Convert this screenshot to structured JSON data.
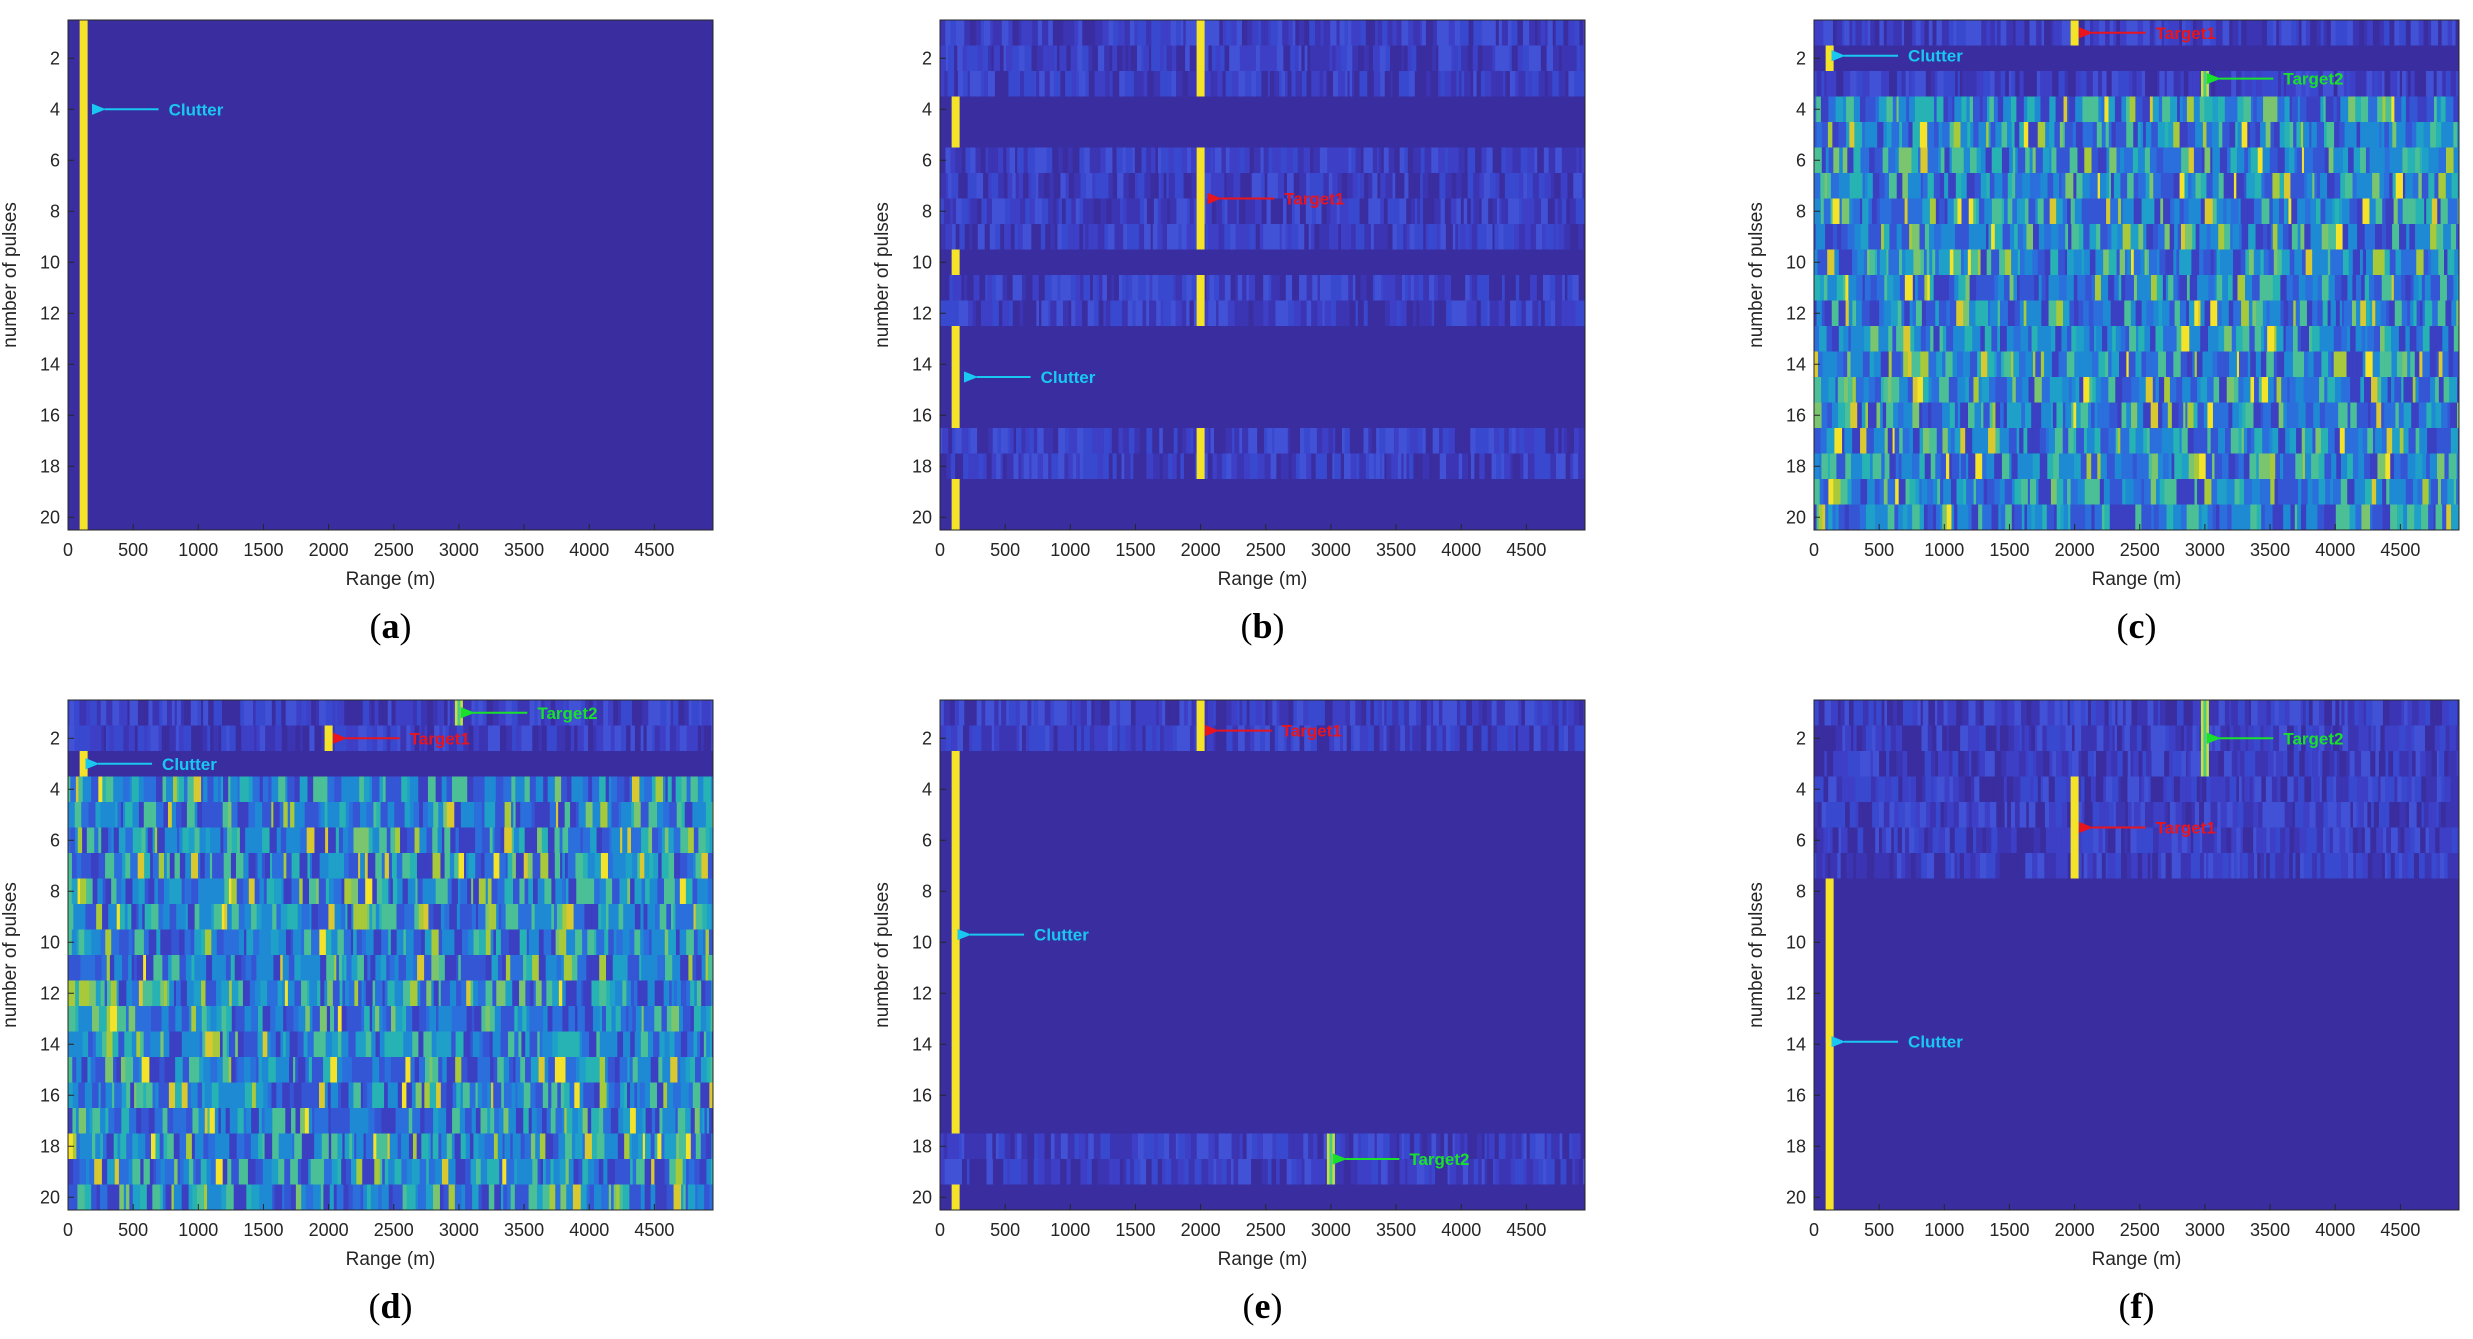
{
  "figure": {
    "colors": {
      "background": "#3a2da0",
      "clutter": "#f5e32a",
      "target": "#f5e32a",
      "clutter_annot": "#19c8f0",
      "target1_annot": "#e8141e",
      "target2_annot": "#19e02c",
      "speckle_low": "#3b3fc2",
      "speckle_mid": "#1fa0c8",
      "speckle_high": "#a8c93a"
    }
  },
  "chart_data": [
    {
      "type": "heatmap",
      "panel": "(a)",
      "panel_letter": "a",
      "xlabel": "Range (m)",
      "ylabel": "number of pulses",
      "xlim": [
        0,
        4950
      ],
      "ylim": [
        0.5,
        20.5
      ],
      "xticks": [
        0,
        500,
        1000,
        1500,
        2000,
        2500,
        3000,
        3500,
        4000,
        4500
      ],
      "yticks": [
        2,
        4,
        6,
        8,
        10,
        12,
        14,
        16,
        18,
        20
      ],
      "noise_rows": [],
      "speckle_rows": [],
      "lines": [
        {
          "kind": "clutter",
          "range": 120,
          "from": 0.5,
          "to": 20.5
        }
      ],
      "annotations": [
        {
          "text": "Clutter",
          "kind": "clutter",
          "point_range": 250,
          "point_pulse": 4
        }
      ]
    },
    {
      "type": "heatmap",
      "panel": "(b)",
      "panel_letter": "b",
      "xlabel": "Range (m)",
      "ylabel": "number of pulses",
      "xlim": [
        0,
        4950
      ],
      "ylim": [
        0.5,
        20.5
      ],
      "xticks": [
        0,
        500,
        1000,
        1500,
        2000,
        2500,
        3000,
        3500,
        4000,
        4500
      ],
      "yticks": [
        2,
        4,
        6,
        8,
        10,
        12,
        14,
        16,
        18,
        20
      ],
      "noise_rows": [
        1,
        2,
        3,
        6,
        7,
        8,
        9,
        11,
        12,
        17,
        18
      ],
      "speckle_rows": [],
      "lines": [
        {
          "kind": "target",
          "range": 2000,
          "from": 0.5,
          "to": 3.5
        },
        {
          "kind": "target",
          "range": 2000,
          "from": 5.5,
          "to": 9.5
        },
        {
          "kind": "target",
          "range": 2000,
          "from": 10.5,
          "to": 12.5
        },
        {
          "kind": "target",
          "range": 2000,
          "from": 16.5,
          "to": 18.5
        },
        {
          "kind": "clutter",
          "range": 120,
          "from": 3.5,
          "to": 5.5
        },
        {
          "kind": "clutter",
          "range": 120,
          "from": 9.5,
          "to": 10.5
        },
        {
          "kind": "clutter",
          "range": 120,
          "from": 12.5,
          "to": 16.5
        },
        {
          "kind": "clutter",
          "range": 120,
          "from": 18.5,
          "to": 20.5
        }
      ],
      "annotations": [
        {
          "text": "Target1",
          "kind": "target1",
          "point_range": 2120,
          "point_pulse": 7.5
        },
        {
          "text": "Clutter",
          "kind": "clutter",
          "point_range": 250,
          "point_pulse": 14.5
        }
      ]
    },
    {
      "type": "heatmap",
      "panel": "(c)",
      "panel_letter": "c",
      "xlabel": "Range (m)",
      "ylabel": "number of pulses",
      "xlim": [
        0,
        4950
      ],
      "ylim": [
        0.5,
        20.5
      ],
      "xticks": [
        0,
        500,
        1000,
        1500,
        2000,
        2500,
        3000,
        3500,
        4000,
        4500
      ],
      "yticks": [
        2,
        4,
        6,
        8,
        10,
        12,
        14,
        16,
        18,
        20
      ],
      "noise_rows": [
        1,
        3
      ],
      "speckle_rows": [
        4,
        5,
        6,
        7,
        8,
        9,
        10,
        11,
        12,
        13,
        14,
        15,
        16,
        17,
        18,
        19,
        20
      ],
      "lines": [
        {
          "kind": "target",
          "range": 2000,
          "from": 0.5,
          "to": 1.5
        },
        {
          "kind": "clutter",
          "range": 120,
          "from": 1.5,
          "to": 2.5
        },
        {
          "kind": "target2",
          "range": 3000,
          "from": 2.5,
          "to": 3.5
        }
      ],
      "annotations": [
        {
          "text": "Target1",
          "kind": "target1",
          "point_range": 2100,
          "point_pulse": 1
        },
        {
          "text": "Clutter",
          "kind": "clutter",
          "point_range": 200,
          "point_pulse": 1.9
        },
        {
          "text": "Target2",
          "kind": "target2",
          "point_range": 3080,
          "point_pulse": 2.8
        }
      ]
    },
    {
      "type": "heatmap",
      "panel": "(d)",
      "panel_letter": "d",
      "xlabel": "Range (m)",
      "ylabel": "number of pulses",
      "xlim": [
        0,
        4950
      ],
      "ylim": [
        0.5,
        20.5
      ],
      "xticks": [
        0,
        500,
        1000,
        1500,
        2000,
        2500,
        3000,
        3500,
        4000,
        4500
      ],
      "yticks": [
        2,
        4,
        6,
        8,
        10,
        12,
        14,
        16,
        18,
        20
      ],
      "noise_rows": [
        1,
        2
      ],
      "speckle_rows": [
        4,
        5,
        6,
        7,
        8,
        9,
        10,
        11,
        12,
        13,
        14,
        15,
        16,
        17,
        18,
        19,
        20
      ],
      "lines": [
        {
          "kind": "target2",
          "range": 3000,
          "from": 0.5,
          "to": 1.5
        },
        {
          "kind": "target",
          "range": 2000,
          "from": 1.5,
          "to": 2.5
        },
        {
          "kind": "clutter",
          "range": 120,
          "from": 2.5,
          "to": 3.5
        }
      ],
      "annotations": [
        {
          "text": "Target2",
          "kind": "target2",
          "point_range": 3080,
          "point_pulse": 1
        },
        {
          "text": "Target1",
          "kind": "target1",
          "point_range": 2100,
          "point_pulse": 2
        },
        {
          "text": "Clutter",
          "kind": "clutter",
          "point_range": 200,
          "point_pulse": 3
        }
      ]
    },
    {
      "type": "heatmap",
      "panel": "(e)",
      "panel_letter": "e",
      "xlabel": "Range (m)",
      "ylabel": "number of pulses",
      "xlim": [
        0,
        4950
      ],
      "ylim": [
        0.5,
        20.5
      ],
      "xticks": [
        0,
        500,
        1000,
        1500,
        2000,
        2500,
        3000,
        3500,
        4000,
        4500
      ],
      "yticks": [
        2,
        4,
        6,
        8,
        10,
        12,
        14,
        16,
        18,
        20
      ],
      "noise_rows": [
        1,
        2,
        18,
        19
      ],
      "speckle_rows": [],
      "lines": [
        {
          "kind": "target",
          "range": 2000,
          "from": 0.5,
          "to": 2.5
        },
        {
          "kind": "clutter",
          "range": 120,
          "from": 2.5,
          "to": 17.5
        },
        {
          "kind": "target2",
          "range": 3000,
          "from": 17.5,
          "to": 19.5
        },
        {
          "kind": "clutter",
          "range": 120,
          "from": 19.5,
          "to": 20.5
        }
      ],
      "annotations": [
        {
          "text": "Target1",
          "kind": "target1",
          "point_range": 2100,
          "point_pulse": 1.7
        },
        {
          "text": "Clutter",
          "kind": "clutter",
          "point_range": 200,
          "point_pulse": 9.7
        },
        {
          "text": "Target2",
          "kind": "target2",
          "point_range": 3080,
          "point_pulse": 18.5
        }
      ]
    },
    {
      "type": "heatmap",
      "panel": "(f)",
      "panel_letter": "f",
      "xlabel": "Range (m)",
      "ylabel": "number of pulses",
      "xlim": [
        0,
        4950
      ],
      "ylim": [
        0.5,
        20.5
      ],
      "xticks": [
        0,
        500,
        1000,
        1500,
        2000,
        2500,
        3000,
        3500,
        4000,
        4500
      ],
      "yticks": [
        2,
        4,
        6,
        8,
        10,
        12,
        14,
        16,
        18,
        20
      ],
      "noise_rows": [
        1,
        2,
        3,
        4,
        5,
        6,
        7
      ],
      "speckle_rows": [],
      "lines": [
        {
          "kind": "target2",
          "range": 3000,
          "from": 0.5,
          "to": 3.5
        },
        {
          "kind": "target",
          "range": 2000,
          "from": 3.5,
          "to": 7.5
        },
        {
          "kind": "clutter",
          "range": 120,
          "from": 7.5,
          "to": 20.5
        }
      ],
      "annotations": [
        {
          "text": "Target2",
          "kind": "target2",
          "point_range": 3080,
          "point_pulse": 2
        },
        {
          "text": "Target1",
          "kind": "target1",
          "point_range": 2100,
          "point_pulse": 5.5
        },
        {
          "text": "Clutter",
          "kind": "clutter",
          "point_range": 200,
          "point_pulse": 13.9
        }
      ]
    }
  ]
}
